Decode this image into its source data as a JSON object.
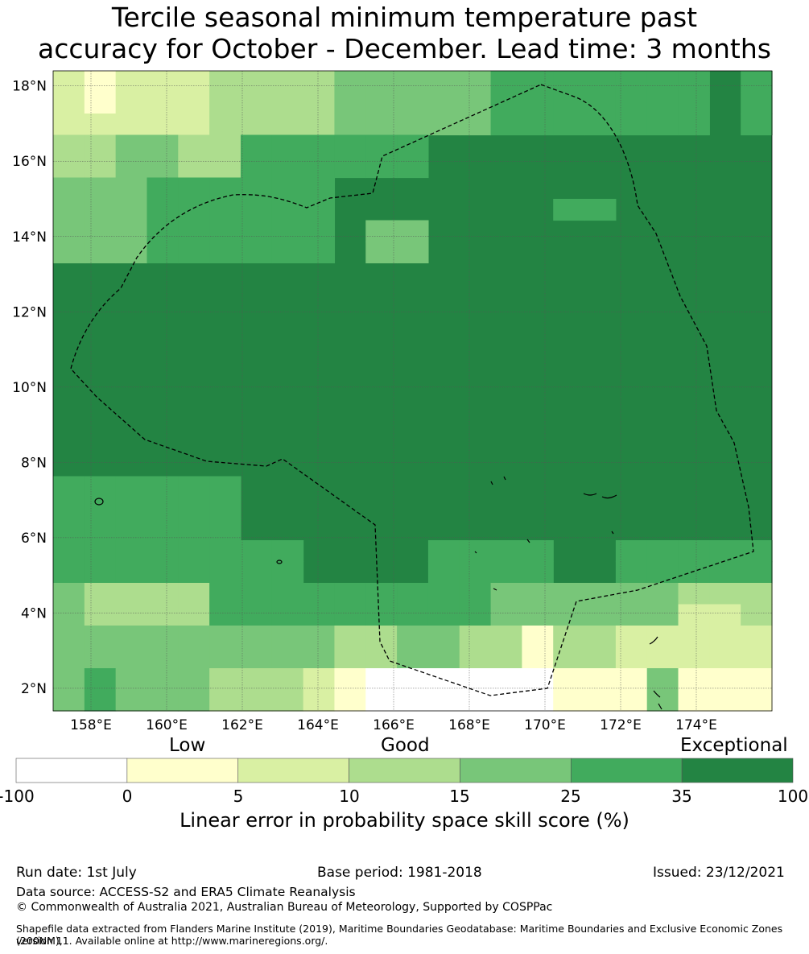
{
  "title_line1": "Tercile seasonal minimum temperature past",
  "title_line2": "accuracy for October - December. Lead time: 3 months",
  "map": {
    "lon_range": [
      157,
      176
    ],
    "lat_range": [
      1.4,
      18.4
    ],
    "lon_ticks": [
      "158°E",
      "160°E",
      "162°E",
      "164°E",
      "166°E",
      "168°E",
      "170°E",
      "172°E",
      "174°E"
    ],
    "lat_ticks": [
      "2°N",
      "4°N",
      "6°N",
      "8°N",
      "10°N",
      "12°N",
      "14°N",
      "16°N",
      "18°N"
    ],
    "boundary_style": "dashed"
  },
  "colorbar": {
    "category_labels": [
      "Low",
      "Good",
      "Exceptional"
    ],
    "tick_labels": [
      "-100",
      "0",
      "5",
      "10",
      "15",
      "25",
      "35",
      "100"
    ],
    "colors": [
      "#ffffff",
      "#ffffcc",
      "#d9f0a3",
      "#addd8e",
      "#78c679",
      "#41ab5d",
      "#238443"
    ],
    "title": "Linear error in probability space skill score (%)"
  },
  "footer": {
    "run_date": "Run date: 1st July",
    "base_period": "Base period: 1981-2018",
    "issued": "Issued: 23/12/2021",
    "data_source": "Data source: ACCESS-S2 and ERA5 Climate Reanalysis",
    "copyright": "© Commonwealth of Australia 2021, Australian Bureau of Meteorology, Supported by COSPPac",
    "shapefile_line1": "Shapefile data extracted from Flanders Marine Institute (2019), Maritime Boundaries Geodatabase: Maritime Boundaries and Exclusive Economic Zones (200NM),",
    "shapefile_line2": "version 11. Available online at http://www.marineregions.org/."
  }
}
